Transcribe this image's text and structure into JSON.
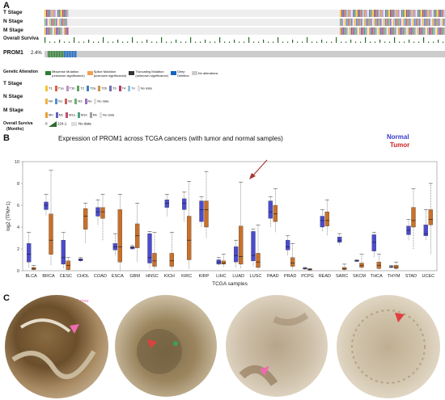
{
  "panel_a": {
    "letter": "A",
    "track_labels": [
      "T Stage",
      "N Stage",
      "M Stage",
      "Overall Surviva"
    ],
    "gene": {
      "name": "PROM1",
      "pct": "2.4%"
    },
    "legend": {
      "genetic_alteration": {
        "title": "Genetic Alteration",
        "items": [
          {
            "label": "Missense Mutation\n(unknown significance)",
            "color": "#2e7d32"
          },
          {
            "label": "Splice Mutation\n(unknown significance)",
            "color": "#f0a050"
          },
          {
            "label": "Truncating Mutation\n(unknown significance)",
            "color": "#333333"
          },
          {
            "label": "Deep\nDeletion",
            "color": "#1565c0"
          },
          {
            "label": "No alterations",
            "color": "#cccccc"
          }
        ]
      },
      "t_stage": {
        "title": "T Stage",
        "items": [
          "T1",
          "T1a",
          "T1b",
          "T2",
          "T2a",
          "T2b",
          "T3",
          "T4",
          "Tx",
          "No data"
        ]
      },
      "n_stage": {
        "title": "N Stage",
        "items": [
          "N0",
          "N1",
          "N2",
          "N3",
          "Nx",
          "No data"
        ]
      },
      "m_stage": {
        "title": "M Stage",
        "items": [
          "M0",
          "M1",
          "M1a",
          "M1b",
          "Mx",
          "No data"
        ]
      },
      "overall_survival": {
        "title": "Overall Surviva",
        "subtitle": "(Months)",
        "min": "0",
        "max": "224.1",
        "nodata": "No data"
      }
    },
    "colors": {
      "t": [
        "#f4c430",
        "#e06040",
        "#c090d0",
        "#60a060",
        "#4080c0",
        "#d09050",
        "#7070b0",
        "#b04060",
        "#90c0e0",
        "#e0e0e0"
      ],
      "n": [
        "#f0b040",
        "#5090d0",
        "#d06060",
        "#70b070",
        "#a070c0",
        "#e0e0e0"
      ],
      "m": [
        "#e8a030",
        "#6060c0",
        "#c05070",
        "#50a080",
        "#a0a0a0",
        "#e0e0e0"
      ]
    }
  },
  "panel_b": {
    "letter": "B",
    "chart_data": {
      "type": "box",
      "title": "Expression of PROM1 across TCGA cancers (with tumor and normal samples)",
      "xlabel": "TCGA samples",
      "ylabel": "log2 (TPM+1)",
      "ylim": [
        0,
        10
      ],
      "yticks": [
        0,
        2,
        4,
        6,
        8,
        10
      ],
      "legend": [
        {
          "name": "Normal",
          "color": "#3a3acc"
        },
        {
          "name": "Tumor",
          "color": "#cc2222"
        }
      ],
      "categories": [
        "BLCA",
        "BRCA",
        "CESC",
        "CHOL",
        "COAD",
        "ESCA",
        "GBM",
        "HNSC",
        "KICH",
        "KIRC",
        "KIRP",
        "LIHC",
        "LUAD",
        "LUSC",
        "PAAD",
        "PRAD",
        "PCPG",
        "READ",
        "SARC",
        "SKCM",
        "THCA",
        "THYM",
        "STAD",
        "UCEC"
      ],
      "series": [
        {
          "name": "Normal",
          "boxes": [
            [
              0.3,
              0.8,
              1.5,
              2.5,
              3.5
            ],
            [
              5.0,
              5.6,
              6.0,
              6.3,
              7.0
            ],
            [
              0.2,
              0.6,
              1.2,
              2.8,
              3.5
            ],
            [
              0.8,
              0.9,
              1.0,
              1.1,
              1.2
            ],
            [
              4.2,
              5.0,
              5.4,
              5.8,
              6.5
            ],
            [
              1.4,
              1.9,
              2.2,
              2.5,
              3.4
            ],
            [
              1.9,
              2.0,
              2.1,
              2.2,
              2.3
            ],
            [
              0.2,
              0.7,
              1.2,
              3.4,
              3.6
            ],
            [
              5.0,
              5.8,
              6.2,
              6.5,
              7.0
            ],
            [
              4.5,
              5.6,
              6.2,
              6.6,
              7.2
            ],
            [
              4.0,
              4.5,
              5.6,
              6.4,
              6.8
            ],
            [
              0.5,
              0.6,
              0.8,
              1.0,
              1.2
            ],
            [
              0.3,
              0.8,
              1.4,
              2.2,
              2.8
            ],
            [
              0.4,
              0.9,
              1.4,
              3.6,
              3.8
            ],
            [
              4.0,
              4.8,
              5.4,
              6.4,
              6.8
            ],
            [
              1.4,
              1.9,
              2.2,
              2.8,
              3.2
            ],
            [
              0.1,
              0.15,
              0.2,
              0.25,
              0.3
            ],
            [
              3.6,
              4.0,
              4.6,
              5.0,
              5.6
            ],
            [
              2.4,
              2.6,
              2.8,
              3.1,
              3.4
            ],
            [
              0.8,
              0.85,
              0.9,
              0.95,
              1.0
            ],
            [
              1.2,
              1.8,
              2.6,
              3.3,
              3.5
            ],
            [
              0.2,
              0.3,
              0.35,
              0.4,
              0.5
            ],
            [
              2.8,
              3.3,
              3.7,
              4.1,
              4.7
            ],
            [
              2.8,
              3.2,
              3.4,
              4.2,
              5.6
            ]
          ]
        },
        {
          "name": "Tumor",
          "boxes": [
            [
              0.0,
              0.1,
              0.2,
              0.3,
              0.5
            ],
            [
              0.5,
              1.5,
              2.8,
              5.2,
              9.2
            ],
            [
              0.0,
              0.1,
              0.5,
              0.9,
              1.2
            ],
            [
              2.5,
              3.8,
              5.0,
              5.7,
              6.2
            ],
            [
              2.8,
              4.8,
              5.4,
              5.8,
              7.0
            ],
            [
              0.0,
              0.8,
              2.2,
              5.6,
              7.0
            ],
            [
              0.8,
              2.1,
              3.2,
              4.3,
              6.2
            ],
            [
              0.1,
              0.4,
              0.9,
              1.6,
              3.5
            ],
            [
              0.1,
              0.4,
              0.9,
              1.6,
              3.5
            ],
            [
              0.2,
              1.0,
              2.8,
              5.0,
              8.2
            ],
            [
              3.0,
              4.0,
              5.6,
              6.4,
              9.1
            ],
            [
              0.3,
              0.6,
              0.7,
              0.9,
              1.5
            ],
            [
              0.2,
              0.6,
              1.3,
              4.1,
              8.1
            ],
            [
              0.1,
              0.3,
              0.8,
              1.6,
              4.2
            ],
            [
              3.5,
              4.5,
              5.2,
              6.0,
              7.5
            ],
            [
              0.1,
              0.4,
              0.7,
              1.2,
              2.5
            ],
            [
              0.0,
              0.05,
              0.1,
              0.15,
              0.2
            ],
            [
              3.2,
              4.1,
              4.6,
              5.4,
              6.5
            ],
            [
              0.0,
              0.1,
              0.2,
              0.3,
              0.6
            ],
            [
              0.1,
              0.3,
              0.5,
              0.7,
              1.5
            ],
            [
              0.1,
              0.2,
              0.5,
              0.8,
              1.5
            ],
            [
              0.1,
              0.2,
              0.3,
              0.5,
              0.8
            ],
            [
              2.0,
              4.0,
              4.6,
              5.8,
              7.5
            ],
            [
              1.5,
              4.2,
              4.7,
              5.6,
              8.0
            ]
          ]
        }
      ]
    }
  },
  "panel_c": {
    "letter": "C",
    "annotation": "Tumor"
  }
}
